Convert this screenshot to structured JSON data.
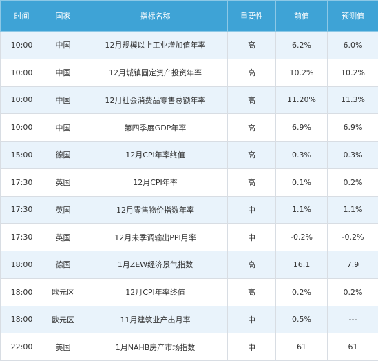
{
  "headers": [
    "时间",
    "国家",
    "指标名称",
    "重要性",
    "前值",
    "预测值"
  ],
  "rows": [
    [
      "10:00",
      "中国",
      "12月规模以上工业增加值年率",
      "高",
      "6.2%",
      "6.0%"
    ],
    [
      "10:00",
      "中国",
      "12月城镇固定资产投资年率",
      "高",
      "10.2%",
      "10.2%"
    ],
    [
      "10:00",
      "中国",
      "12月社会消费品零售总额年率",
      "高",
      "11.20%",
      "11.3%"
    ],
    [
      "10:00",
      "中国",
      "第四季度GDP年率",
      "高",
      "6.9%",
      "6.9%"
    ],
    [
      "15:00",
      "德国",
      "12月CPI年率终值",
      "高",
      "0.3%",
      "0.3%"
    ],
    [
      "17:30",
      "英国",
      "12月CPI年率",
      "高",
      "0.1%",
      "0.2%"
    ],
    [
      "17:30",
      "英国",
      "12月零售物价指数年率",
      "中",
      "1.1%",
      "1.1%"
    ],
    [
      "17:30",
      "英国",
      "12月未季调输出PPI月率",
      "中",
      "-0.2%",
      "-0.2%"
    ],
    [
      "18:00",
      "德国",
      "1月ZEW经济景气指数",
      "高",
      "16.1",
      "7.9"
    ],
    [
      "18:00",
      "欧元区",
      "12月CPI年率终值",
      "高",
      "0.2%",
      "0.2%"
    ],
    [
      "18:00",
      "欧元区",
      "11月建筑业产出月率",
      "中",
      "0.5%",
      "---"
    ],
    [
      "22:00",
      "美国",
      "1月NAHB房产市场指数",
      "中",
      "61",
      "61"
    ]
  ],
  "colors": {
    "header_bg": "#3ea3d6",
    "header_text": "#ffffff",
    "row_alt_bg": "#e9f3fb",
    "row_bg": "#ffffff",
    "border": "#d8dde3"
  }
}
